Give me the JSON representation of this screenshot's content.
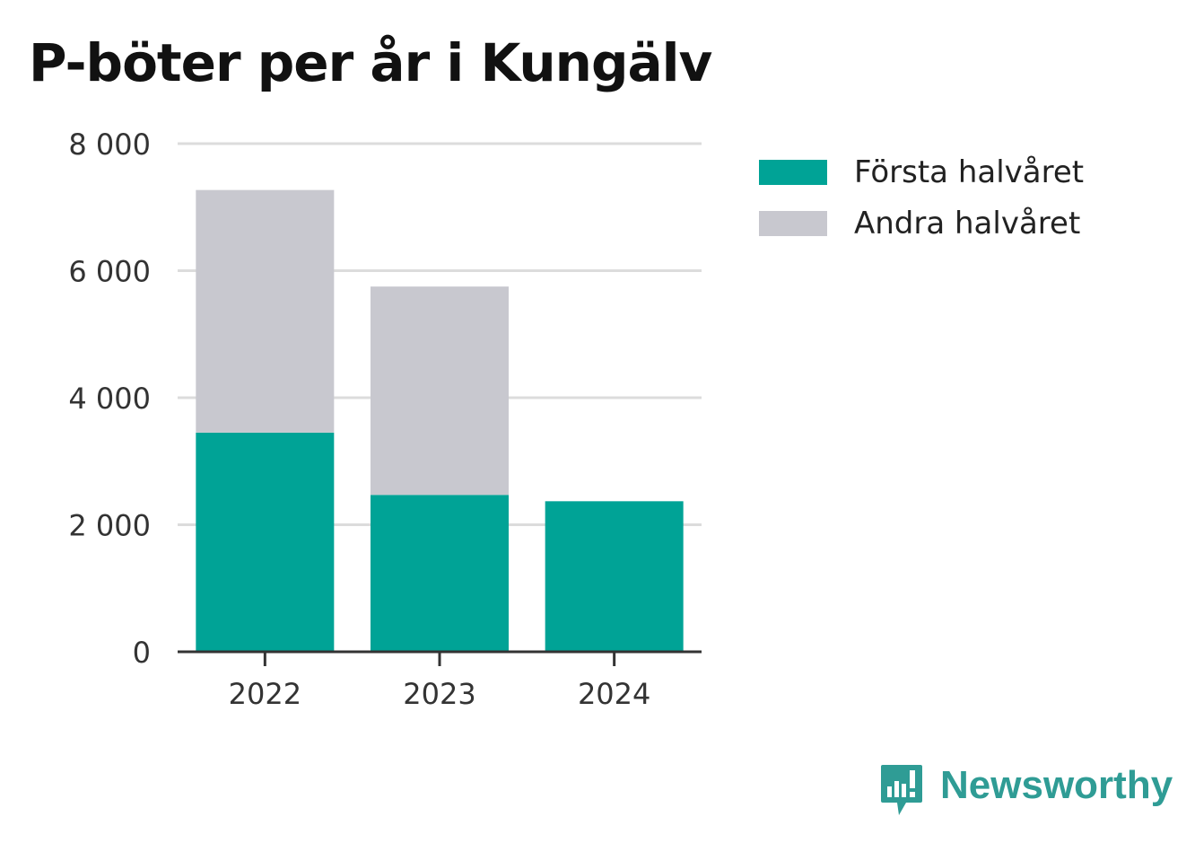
{
  "chart_data": {
    "type": "bar",
    "stacked": true,
    "title": "P-böter per år i Kungälv",
    "categories": [
      "2022",
      "2023",
      "2024"
    ],
    "series": [
      {
        "name": "Första halvåret",
        "values": [
          3450,
          2470,
          2370
        ],
        "color": "#00a396"
      },
      {
        "name": "Andra halvåret",
        "values": [
          3820,
          3280,
          0
        ],
        "color": "#c8c8cf"
      }
    ],
    "ylim": [
      0,
      8000
    ],
    "yticks": [
      0,
      2000,
      4000,
      6000,
      8000
    ],
    "ytick_labels": [
      "0",
      "2 000",
      "4 000",
      "6 000",
      "8 000"
    ],
    "xlabel": "",
    "ylabel": "",
    "grid": true,
    "legend_position": "right"
  },
  "brand": {
    "name": "Newsworthy",
    "icon": "newsworthy-logo-icon",
    "color": "#2f9c95"
  }
}
